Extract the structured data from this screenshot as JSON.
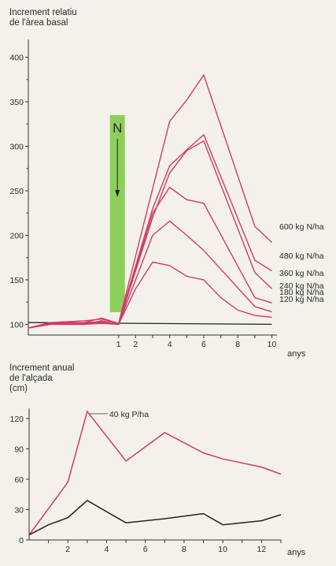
{
  "chart_data": [
    {
      "type": "line",
      "title": "Increment relatiu de l'àrea basal",
      "title_lines": [
        "Increment relatiu",
        "de l'àrea basal"
      ],
      "xlabel": "anys",
      "ylabel": "",
      "x_ticks": [
        1,
        2,
        4,
        6,
        8,
        10
      ],
      "y_ticks": [
        100,
        150,
        200,
        250,
        300,
        350,
        400
      ],
      "xlim": [
        -4.3,
        10.3
      ],
      "ylim": [
        88,
        420
      ],
      "annotation": "N",
      "grid": false,
      "line_color": "#d23a6a",
      "control_color": "#222222",
      "band_color": "#7ac943",
      "control": {
        "name": "",
        "x": [
          -4.3,
          10
        ],
        "values": [
          102,
          100
        ]
      },
      "series": [
        {
          "name": "600 kg N/ha",
          "x": [
            -4.3,
            -3,
            -1,
            0,
            1,
            4,
            5,
            6,
            9,
            10
          ],
          "values": [
            96,
            102,
            104,
            106,
            101,
            328,
            352,
            380,
            210,
            192
          ]
        },
        {
          "name": "480 kg N/ha",
          "x": [
            -4.3,
            -3,
            -1,
            0,
            1,
            3,
            4,
            5,
            6,
            9,
            10
          ],
          "values": [
            96,
            101,
            102,
            107,
            101,
            230,
            278,
            296,
            313,
            172,
            160
          ]
        },
        {
          "name": "360 kg N/ha",
          "x": [
            -4.3,
            -3,
            -1,
            0,
            1,
            3,
            4,
            5,
            6,
            9,
            10
          ],
          "values": [
            96,
            100,
            100,
            104,
            100,
            220,
            270,
            295,
            306,
            158,
            140
          ]
        },
        {
          "name": "240 kg N/ha",
          "x": [
            -4.3,
            -3,
            -1,
            0,
            1,
            3,
            4,
            5,
            6,
            9,
            10
          ],
          "values": [
            96,
            102,
            102,
            103,
            100,
            225,
            254,
            240,
            236,
            130,
            124
          ]
        },
        {
          "name": "180 kg N/ha",
          "x": [
            -4.3,
            -3,
            -1,
            0,
            1,
            3,
            4,
            5,
            6,
            9,
            10
          ],
          "values": [
            96,
            101,
            101,
            102,
            100,
            200,
            216,
            200,
            183,
            120,
            114
          ]
        },
        {
          "name": "120 kg N/ha",
          "x": [
            -4.3,
            -3,
            -1,
            0,
            1,
            2,
            3,
            4,
            5,
            6,
            7,
            8,
            9,
            10
          ],
          "values": [
            96,
            100,
            100,
            101,
            100,
            140,
            170,
            166,
            154,
            150,
            130,
            116,
            110,
            108
          ]
        }
      ]
    },
    {
      "type": "line",
      "title": "Increment anual de l'alçada (cm)",
      "title_lines": [
        "Increment anual",
        "de l'alçada",
        "(cm)"
      ],
      "xlabel": "anys",
      "ylabel": "",
      "x_ticks": [
        2,
        4,
        6,
        8,
        10,
        12
      ],
      "y_ticks": [
        0,
        30,
        60,
        90,
        120
      ],
      "xlim": [
        0,
        13
      ],
      "ylim": [
        0,
        130
      ],
      "grid": false,
      "series": [
        {
          "name": "40 kg P/ha",
          "color": "#d23a6a",
          "x": [
            0,
            2,
            3,
            5,
            7,
            9,
            10,
            12,
            13
          ],
          "values": [
            5,
            57,
            127,
            78,
            106,
            86,
            80,
            72,
            65
          ]
        },
        {
          "name": "",
          "color": "#222222",
          "x": [
            0,
            1,
            2,
            3,
            5,
            7,
            9,
            10,
            12,
            13
          ],
          "values": [
            5,
            15,
            22,
            39,
            17,
            21,
            26,
            15,
            19,
            25
          ]
        }
      ]
    }
  ]
}
